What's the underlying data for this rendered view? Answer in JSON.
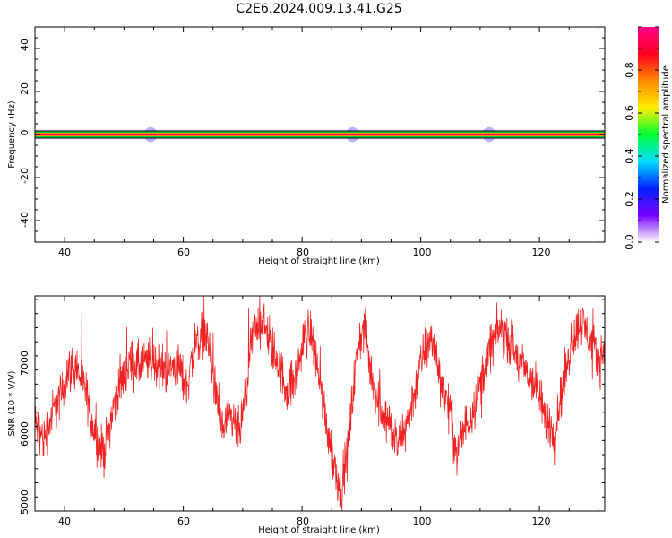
{
  "title": "C2E6.2024.009.13.41.G25",
  "colors": {
    "snr_line": "#ee2222",
    "axis": "#000000",
    "background": "#ffffff"
  },
  "chart_data": [
    {
      "type": "heatmap",
      "xlabel": "Height of straight line (km)",
      "ylabel": "Frequency (Hz)",
      "xlim": [
        35,
        131
      ],
      "ylim": [
        -50,
        50
      ],
      "x_ticks": [
        "40",
        "60",
        "80",
        "100",
        "120"
      ],
      "y_ticks": [
        "40",
        "20",
        "0",
        "-20",
        "-40"
      ],
      "grid": false,
      "band": {
        "center_hz": 0,
        "core_halfwidth_hz": 0.6,
        "halo_halfwidth_hz": 2.5,
        "halo_bulges": [
          {
            "x_km": 54.5,
            "extra_hz": 1.0
          },
          {
            "x_km": 88.5,
            "extra_hz": 1.0
          },
          {
            "x_km": 111.5,
            "extra_hz": 1.0
          }
        ]
      },
      "colorbar": {
        "label": "Normalized spectral amplitude",
        "range": [
          0,
          1
        ],
        "ticks": [
          "0.0",
          "0.2",
          "0.4",
          "0.6",
          "0.8"
        ],
        "stops": [
          "#ffffff",
          "#7700ff",
          "#0022ff",
          "#00ddff",
          "#00ff33",
          "#ffee00",
          "#ff8800",
          "#ff0022",
          "#ff0088"
        ]
      }
    },
    {
      "type": "line",
      "xlabel": "Height of straight line (km)",
      "ylabel": "SNR (10 * V/V)",
      "xlim": [
        35,
        131
      ],
      "ylim": [
        4900,
        7950
      ],
      "x_ticks": [
        "40",
        "60",
        "80",
        "100",
        "120"
      ],
      "y_ticks": [
        "7000",
        "6000",
        "5000"
      ],
      "grid": false,
      "series": [
        {
          "trend_points": [
            [
              35,
              6150
            ],
            [
              36.5,
              5900
            ],
            [
              38,
              6300
            ],
            [
              39.5,
              6550
            ],
            [
              40.5,
              6900
            ],
            [
              42,
              6950
            ],
            [
              43.5,
              6600
            ],
            [
              45,
              6050
            ],
            [
              46.5,
              5700
            ],
            [
              47.5,
              6100
            ],
            [
              49,
              6650
            ],
            [
              51,
              7000
            ],
            [
              53,
              6950
            ],
            [
              54.5,
              7050
            ],
            [
              56,
              6950
            ],
            [
              57.5,
              6900
            ],
            [
              59,
              7000
            ],
            [
              60.5,
              6650
            ],
            [
              62,
              7250
            ],
            [
              63.5,
              7450
            ],
            [
              64.5,
              7200
            ],
            [
              65.5,
              6500
            ],
            [
              66.5,
              6050
            ],
            [
              68,
              6200
            ],
            [
              69.5,
              6000
            ],
            [
              70.5,
              6500
            ],
            [
              71.5,
              7300
            ],
            [
              73,
              7650
            ],
            [
              74.5,
              7300
            ],
            [
              76,
              7000
            ],
            [
              77.5,
              6600
            ],
            [
              79,
              6800
            ],
            [
              80.5,
              7400
            ],
            [
              81.5,
              7450
            ],
            [
              82.5,
              7000
            ],
            [
              84,
              6200
            ],
            [
              85.5,
              5550
            ],
            [
              86.5,
              5200
            ],
            [
              87.5,
              5600
            ],
            [
              88.5,
              6500
            ],
            [
              89.5,
              7300
            ],
            [
              90.5,
              7500
            ],
            [
              91.5,
              6900
            ],
            [
              93,
              6400
            ],
            [
              94.5,
              6200
            ],
            [
              96,
              5800
            ],
            [
              97.5,
              6100
            ],
            [
              99,
              6600
            ],
            [
              100.5,
              7150
            ],
            [
              102,
              7350
            ],
            [
              103.5,
              6700
            ],
            [
              105,
              6300
            ],
            [
              106,
              5700
            ],
            [
              107.5,
              6100
            ],
            [
              109,
              6400
            ],
            [
              110.5,
              6850
            ],
            [
              112,
              7300
            ],
            [
              113.5,
              7500
            ],
            [
              115,
              7300
            ],
            [
              116.5,
              7000
            ],
            [
              118,
              6850
            ],
            [
              119.5,
              6650
            ],
            [
              121,
              6200
            ],
            [
              122.5,
              6050
            ],
            [
              124,
              6700
            ],
            [
              125.5,
              7300
            ],
            [
              127,
              7600
            ],
            [
              128.5,
              7350
            ],
            [
              130,
              7000
            ],
            [
              131,
              7250
            ]
          ],
          "noise_amplitude": 320
        }
      ]
    }
  ]
}
